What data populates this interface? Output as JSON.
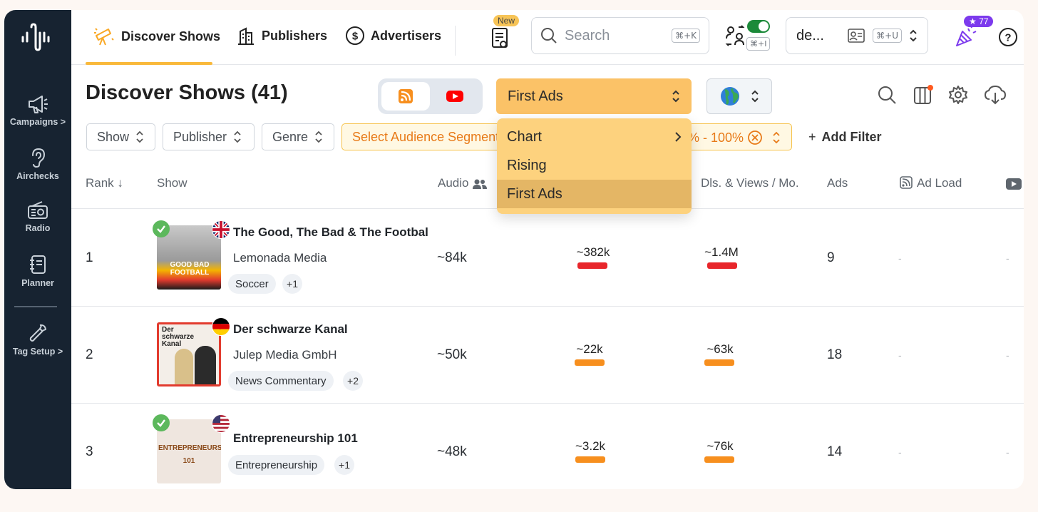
{
  "sidebar": {
    "items": [
      {
        "label": "Campaigns >",
        "icon": "megaphone-icon"
      },
      {
        "label": "Airchecks",
        "icon": "ear-icon"
      },
      {
        "label": "Radio",
        "icon": "radio-icon"
      },
      {
        "label": "Planner",
        "icon": "notebook-icon"
      },
      {
        "label": "Tag Setup >",
        "icon": "wrench-icon"
      }
    ]
  },
  "topnav": {
    "tabs": [
      {
        "label": "Discover Shows",
        "icon": "telescope-icon",
        "active": true
      },
      {
        "label": "Publishers",
        "icon": "building-icon"
      },
      {
        "label": "Advertisers",
        "icon": "dollar-icon"
      }
    ],
    "new_badge": "New",
    "search_placeholder": "Search",
    "search_shortcut": "⌘+K",
    "toggle_shortcut": "⌘+I",
    "user_label": "de...",
    "user_shortcut": "⌘+U",
    "notification_count": "77",
    "accent_color": "#f9b93b"
  },
  "page": {
    "title": "Discover Shows (41)",
    "mode_select": "First Ads",
    "dropdown": {
      "items": [
        {
          "label": "Chart",
          "submenu": true
        },
        {
          "label": "Rising"
        },
        {
          "label": "First Ads",
          "selected": true
        }
      ]
    },
    "filters": {
      "show": "Show",
      "publisher": "Publisher",
      "genre": "Genre",
      "audience": "Select Audience Segment",
      "range": "% - 100%",
      "add_filter": "Add Filter"
    }
  },
  "table": {
    "columns": {
      "rank": "Rank",
      "show": "Show",
      "audio": "Audio",
      "dls": "Dls. & Views / Mo.",
      "ads": "Ads",
      "adload": "Ad Load"
    },
    "rows": [
      {
        "rank": "1",
        "name": "The Good, The Bad & The Footbal",
        "publisher": "Lemonada Media",
        "tag": "Soccer",
        "more": "+1",
        "audio": "~84k",
        "metric1": "~382k",
        "metric2": "~1.4M",
        "ads": "9",
        "adload": "-",
        "yt": "-",
        "bar_color": "#e8262b",
        "thumb_text": "GOOD BAD FOOTBALL",
        "flag": "uk"
      },
      {
        "rank": "2",
        "name": "Der schwarze Kanal",
        "publisher": "Julep Media GmbH",
        "tag": "News Commentary",
        "more": "+2",
        "audio": "~50k",
        "metric1": "~22k",
        "metric2": "~63k",
        "ads": "18",
        "adload": "-",
        "yt": "-",
        "bar_color": "#f78f1e",
        "thumb_text": "Der schwarze Kanal",
        "flag": "de"
      },
      {
        "rank": "3",
        "name": "Entrepreneurship 101",
        "publisher": "",
        "tag": "Entrepreneurship",
        "more": "+1",
        "audio": "~48k",
        "metric1": "~3.2k",
        "metric2": "~76k",
        "ads": "14",
        "adload": "-",
        "yt": "-",
        "bar_color": "#f78f1e",
        "thumb_text": "ENTREPRENEURSHIP 101",
        "flag": "us"
      }
    ]
  }
}
